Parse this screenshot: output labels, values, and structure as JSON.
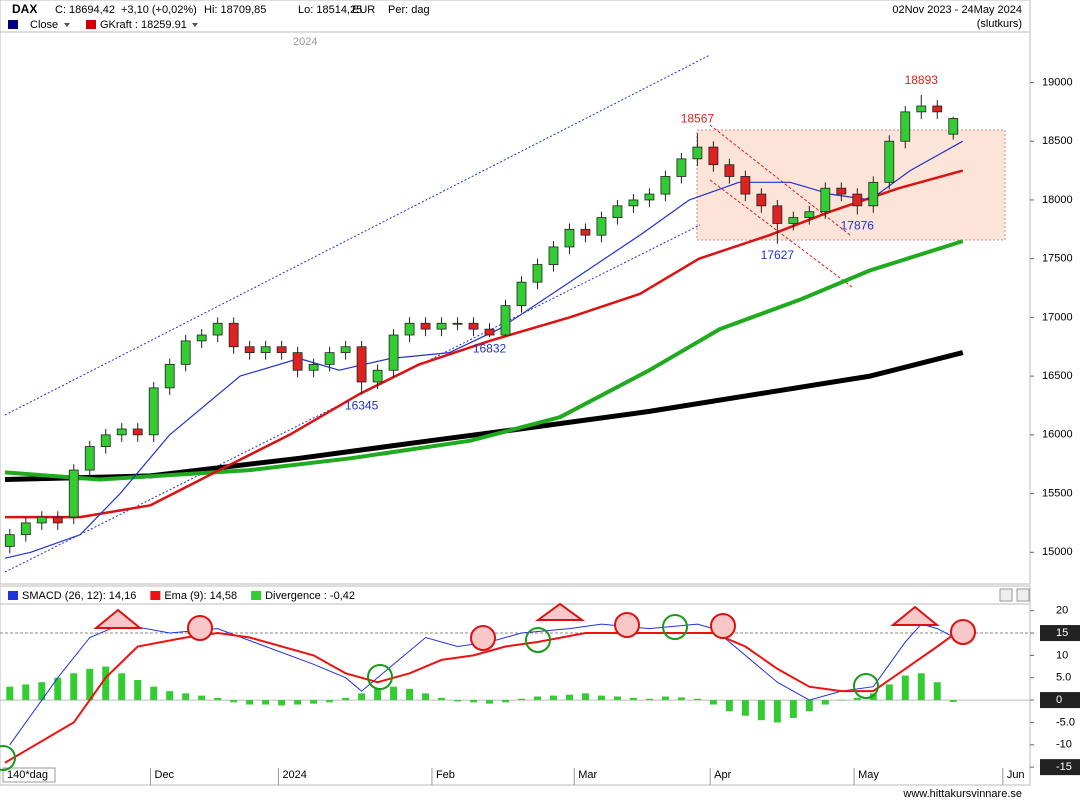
{
  "footer": "www.hittakursvinnare.se",
  "chart_data": [
    {
      "type": "candlestick",
      "title": "DAX",
      "info": [
        "C: 18694,42",
        "+3,10 (+0,02%)",
        "Hi: 18709,85",
        "Lo: 18514,25",
        "EUR",
        "Per: dag"
      ],
      "date_range": "02Nov 2023 - 24May 2024",
      "subtitle": "(slutkurs)",
      "watermark": "2024",
      "period_label": "140*dag",
      "legend": [
        {
          "name": "Close",
          "color": "#000080"
        },
        {
          "name": "GKraft : 18259.91",
          "color": "#cc0000"
        }
      ],
      "up_color": "#33cc33",
      "down_color": "#dd2222",
      "xlim": [
        -0.3,
        63.8
      ],
      "ylim": [
        14730,
        19430
      ],
      "yticks": [
        15000,
        15500,
        16000,
        16500,
        17000,
        17500,
        18000,
        18500,
        19000
      ],
      "xticks": [
        {
          "value": 8.8,
          "label": "Dec"
        },
        {
          "value": 16.8,
          "label": "2024"
        },
        {
          "value": 26.4,
          "label": "Feb"
        },
        {
          "value": 35.3,
          "label": "Mar"
        },
        {
          "value": 43.8,
          "label": "Apr"
        },
        {
          "value": 52.8,
          "label": "May"
        },
        {
          "value": 62.1,
          "label": "Jun"
        }
      ],
      "x": [
        0,
        1,
        2,
        3,
        4,
        5,
        6,
        7,
        8,
        9,
        10,
        11,
        12,
        13,
        14,
        15,
        16,
        17,
        18,
        19,
        20,
        21,
        22,
        23,
        24,
        25,
        26,
        27,
        28,
        29,
        30,
        31,
        32,
        33,
        34,
        35,
        36,
        37,
        38,
        39,
        40,
        41,
        42,
        43,
        44,
        45,
        46,
        47,
        48,
        49,
        50,
        51,
        52,
        53,
        54,
        55,
        56,
        57,
        58,
        59
      ],
      "open": [
        15050,
        15150,
        15250,
        15300,
        15300,
        15700,
        15900,
        16000,
        16050,
        16000,
        16400,
        16600,
        16800,
        16850,
        16950,
        16750,
        16700,
        16750,
        16700,
        16550,
        16600,
        16700,
        16750,
        16450,
        16550,
        16850,
        16950,
        16900,
        16950,
        16950,
        16900,
        16850,
        17100,
        17300,
        17450,
        17600,
        17750,
        17700,
        17850,
        17950,
        18000,
        18050,
        18200,
        18350,
        18450,
        18300,
        18200,
        18050,
        17950,
        17800,
        17850,
        17900,
        18100,
        18050,
        17950,
        18150,
        18500,
        18750,
        18800,
        18560
      ],
      "high": [
        15200,
        15300,
        15350,
        15350,
        15750,
        15950,
        16050,
        16100,
        16100,
        16450,
        16650,
        16850,
        16900,
        17000,
        17000,
        16800,
        16800,
        16800,
        16750,
        16650,
        16750,
        16800,
        16800,
        16600,
        16900,
        17000,
        17000,
        17000,
        17000,
        17000,
        16950,
        17150,
        17350,
        17500,
        17650,
        17800,
        17800,
        17900,
        18000,
        18050,
        18100,
        18250,
        18400,
        18567,
        18500,
        18350,
        18250,
        18100,
        18000,
        17900,
        17950,
        18150,
        18150,
        18100,
        18200,
        18550,
        18800,
        18893,
        18850,
        18710
      ],
      "low": [
        14990,
        15090,
        15190,
        15190,
        15240,
        15640,
        15840,
        15940,
        15940,
        15940,
        16340,
        16540,
        16740,
        16790,
        16690,
        16640,
        16640,
        16640,
        16490,
        16490,
        16540,
        16640,
        16345,
        16390,
        16490,
        16790,
        16840,
        16840,
        16890,
        16840,
        16832,
        16840,
        17040,
        17240,
        17390,
        17540,
        17640,
        17640,
        17790,
        17890,
        17940,
        17990,
        18140,
        18290,
        18240,
        18140,
        17990,
        17890,
        17627,
        17740,
        17790,
        17840,
        17990,
        17876,
        17890,
        18090,
        18440,
        18690,
        18690,
        18514
      ],
      "close": [
        15150,
        15250,
        15300,
        15250,
        15700,
        15900,
        16000,
        16050,
        16000,
        16400,
        16600,
        16800,
        16850,
        16950,
        16750,
        16700,
        16750,
        16700,
        16550,
        16600,
        16700,
        16750,
        16450,
        16550,
        16850,
        16950,
        16900,
        16950,
        16950,
        16900,
        16850,
        17100,
        17300,
        17450,
        17600,
        17750,
        17700,
        17850,
        17950,
        18000,
        18050,
        18200,
        18350,
        18450,
        18300,
        18200,
        18050,
        17950,
        17800,
        17850,
        17900,
        18100,
        18050,
        17950,
        18150,
        18500,
        18750,
        18800,
        18750,
        18694
      ],
      "series": [
        {
          "color": "#000000",
          "width": 5,
          "x": [
            -0.3,
            8.8,
            18.1,
            26.3,
            31.9,
            40,
            46.9,
            53.8,
            59.6
          ],
          "values": [
            15620,
            15650,
            15800,
            15950,
            16050,
            16200,
            16350,
            16500,
            16700
          ]
        },
        {
          "color": "#1faa1f",
          "width": 4,
          "x": [
            -0.3,
            5.6,
            15,
            21.3,
            28.8,
            34.4,
            40,
            44.4,
            49.4,
            53.8,
            59.6
          ],
          "values": [
            15680,
            15620,
            15700,
            15800,
            15950,
            16150,
            16550,
            16900,
            17150,
            17400,
            17650
          ]
        },
        {
          "color": "#dd1111",
          "width": 2.5,
          "x": [
            -0.3,
            4.4,
            8.8,
            13.1,
            17.5,
            21.9,
            25.6,
            30,
            35,
            39.4,
            43.1,
            47.5,
            51.3,
            55.6,
            59.6
          ],
          "values": [
            15300,
            15300,
            15400,
            15700,
            16000,
            16350,
            16600,
            16800,
            17000,
            17200,
            17500,
            17700,
            17900,
            18100,
            18250
          ]
        },
        {
          "color": "#2233cc",
          "width": 1.2,
          "x": [
            -0.3,
            1.3,
            4.4,
            6.9,
            10,
            14.4,
            18.1,
            20.6,
            23.8,
            27.5,
            30.6,
            35,
            39.4,
            42.5,
            45.6,
            48.8,
            51.3,
            53.8,
            56.3,
            59.6
          ],
          "values": [
            14950,
            15000,
            15150,
            15500,
            16000,
            16500,
            16650,
            16550,
            16650,
            16700,
            16900,
            17300,
            17700,
            18000,
            18150,
            18150,
            18050,
            18000,
            18250,
            18500
          ]
        }
      ],
      "annotations": [
        {
          "value": 18567,
          "x": 43,
          "color": "#e02020",
          "position": "above"
        },
        {
          "value": 18893,
          "x": 57,
          "color": "#e02020",
          "position": "above"
        },
        {
          "value": 16345,
          "x": 22,
          "color": "#2233cc",
          "position": "below"
        },
        {
          "value": 16832,
          "x": 30,
          "color": "#2233cc",
          "position": "below"
        },
        {
          "value": 17627,
          "x": 48,
          "color": "#2233cc",
          "position": "below"
        },
        {
          "value": 17876,
          "x": 53,
          "color": "#2233cc",
          "position": "below"
        }
      ]
    },
    {
      "type": "bar_line",
      "ylim": [
        -19,
        21.5
      ],
      "yticks": [
        20,
        {
          "value": 15,
          "boxed": true
        },
        10,
        {
          "value": 5,
          "label": "5.0"
        },
        {
          "value": 0,
          "boxed": true
        },
        {
          "value": -5,
          "label": "-5.0"
        },
        -10,
        {
          "value": -15,
          "boxed": true
        }
      ],
      "reference_lines": [
        15
      ],
      "series": [
        {
          "name": "SMACD (26, 12): 14,16",
          "color": "#2233dd",
          "kind": "line",
          "width": 1,
          "x": [
            0,
            3,
            5,
            7,
            10,
            13,
            16,
            19,
            21,
            22,
            24,
            26,
            28,
            30,
            32,
            35,
            37,
            40,
            43,
            44,
            46,
            48,
            50,
            52,
            54,
            56,
            57,
            58,
            59
          ],
          "values": [
            -10,
            5,
            14,
            17,
            15,
            16,
            12,
            8,
            5,
            2,
            8,
            14,
            12,
            13,
            15,
            16,
            17,
            16,
            17,
            16,
            10,
            4,
            0,
            2,
            3,
            13,
            17,
            16,
            14.16
          ]
        },
        {
          "name": "Ema (9): 14,58",
          "color": "#ee1111",
          "kind": "line",
          "width": 2,
          "x": [
            -0.3,
            4,
            6,
            8,
            11,
            13,
            15,
            19,
            21,
            23,
            25,
            27,
            29,
            31,
            33,
            36,
            40,
            44,
            46,
            48,
            50,
            52,
            54,
            56,
            58,
            59
          ],
          "values": [
            -14,
            -5,
            5,
            12,
            14,
            15,
            14,
            10,
            6,
            4,
            6,
            9,
            10,
            12,
            13,
            15,
            15,
            15,
            12,
            7,
            3,
            2,
            2,
            7,
            12,
            14.58
          ]
        },
        {
          "name": "Divergence : -0,42",
          "color": "#33cc33",
          "kind": "bar",
          "x": [
            0,
            1,
            2,
            3,
            4,
            5,
            6,
            7,
            8,
            9,
            10,
            11,
            12,
            13,
            14,
            15,
            16,
            17,
            18,
            19,
            20,
            21,
            22,
            23,
            24,
            25,
            26,
            27,
            28,
            29,
            30,
            31,
            32,
            33,
            34,
            35,
            36,
            37,
            38,
            39,
            40,
            41,
            42,
            43,
            44,
            45,
            46,
            47,
            48,
            49,
            50,
            51,
            52,
            53,
            54,
            55,
            56,
            57,
            58,
            59
          ],
          "values": [
            3,
            3.5,
            4,
            5,
            6,
            7,
            7.5,
            6,
            4.5,
            3,
            2,
            1.5,
            1,
            0.5,
            -0.5,
            -1,
            -1,
            -1.2,
            -1,
            -0.8,
            -0.5,
            0.5,
            1.5,
            2.5,
            3,
            2.5,
            1.5,
            0.5,
            -0.3,
            -0.5,
            -0.8,
            -0.5,
            0.3,
            0.8,
            1,
            1.2,
            1.5,
            1,
            0.8,
            0.5,
            0.3,
            0.8,
            0.6,
            0.3,
            -1,
            -2.5,
            -3.5,
            -4.5,
            -5,
            -4,
            -2.5,
            -1,
            0,
            0.5,
            1.5,
            3.5,
            5.5,
            6,
            4,
            -0.42
          ]
        }
      ]
    }
  ]
}
